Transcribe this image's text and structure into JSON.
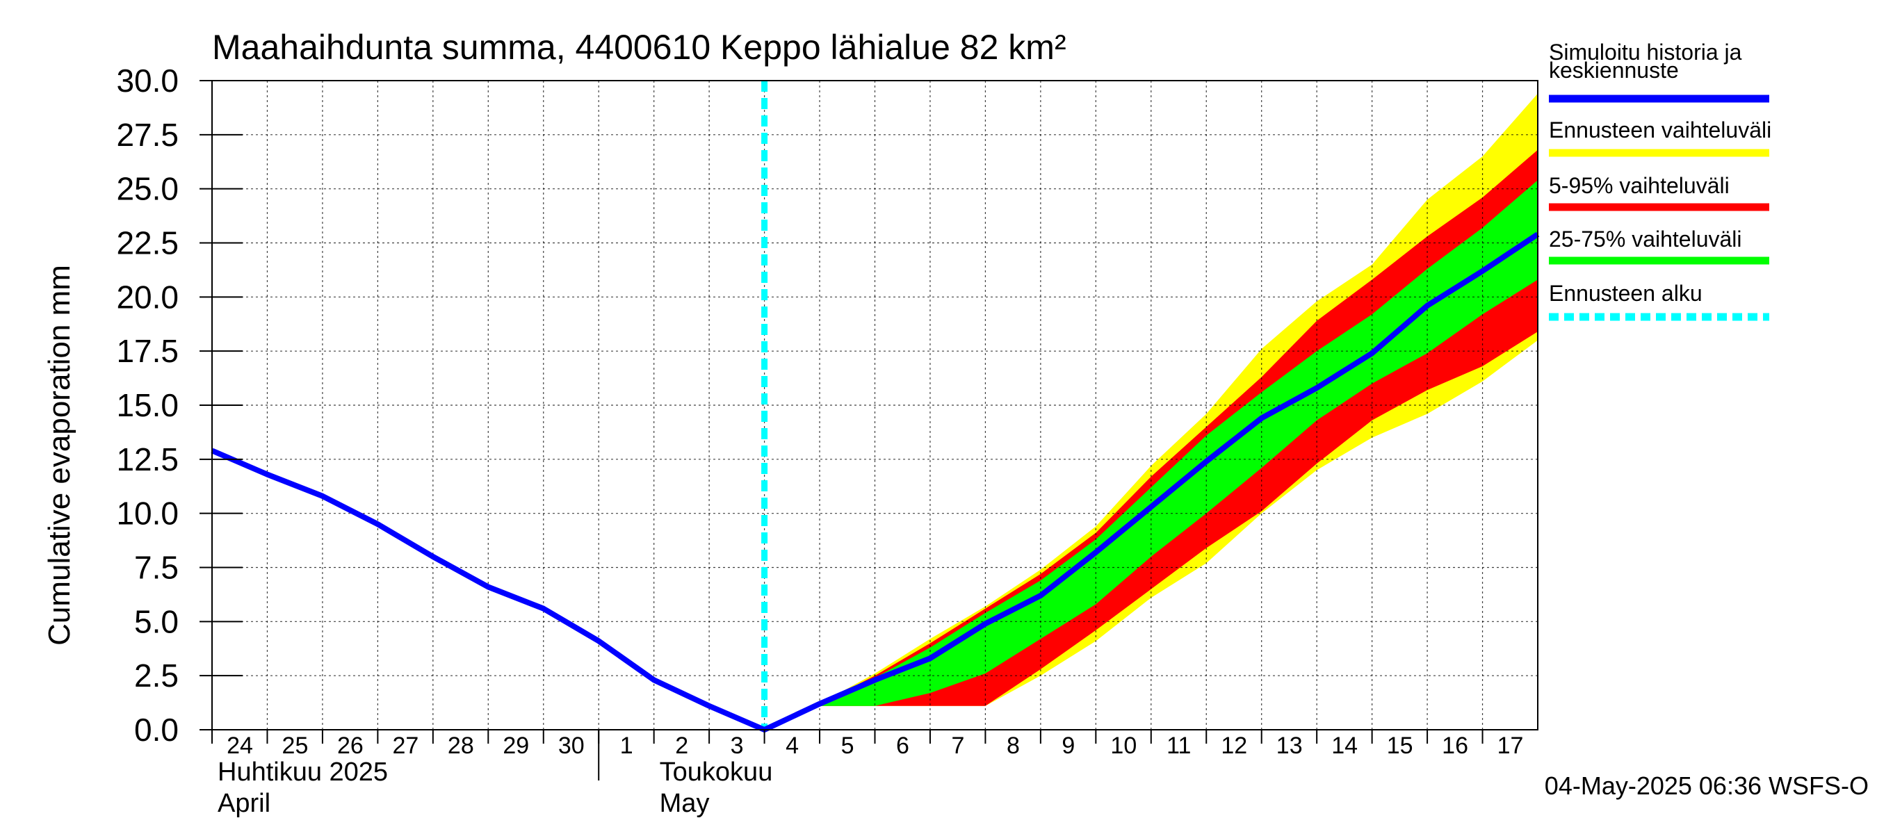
{
  "chart_data": {
    "type": "area",
    "title": "Maahaihdunta summa, 4400610 Keppo lähialue 82 km²",
    "ylabel": "Cumulative evaporation   mm",
    "ylim": [
      0,
      30
    ],
    "yticks": [
      "0.0",
      "2.5",
      "5.0",
      "7.5",
      "10.0",
      "12.5",
      "15.0",
      "17.5",
      "20.0",
      "22.5",
      "25.0",
      "27.5",
      "30.0"
    ],
    "x_range_days": [
      0,
      24
    ],
    "x_ticks": [
      {
        "day": 0,
        "label": "24"
      },
      {
        "day": 1,
        "label": "25"
      },
      {
        "day": 2,
        "label": "26"
      },
      {
        "day": 3,
        "label": "27"
      },
      {
        "day": 4,
        "label": "28"
      },
      {
        "day": 5,
        "label": "29"
      },
      {
        "day": 6,
        "label": "30"
      },
      {
        "day": 7,
        "label": "1"
      },
      {
        "day": 8,
        "label": "2"
      },
      {
        "day": 9,
        "label": "3"
      },
      {
        "day": 10,
        "label": "4"
      },
      {
        "day": 11,
        "label": "5"
      },
      {
        "day": 12,
        "label": "6"
      },
      {
        "day": 13,
        "label": "7"
      },
      {
        "day": 14,
        "label": "8"
      },
      {
        "day": 15,
        "label": "9"
      },
      {
        "day": 16,
        "label": "10"
      },
      {
        "day": 17,
        "label": "11"
      },
      {
        "day": 18,
        "label": "12"
      },
      {
        "day": 19,
        "label": "13"
      },
      {
        "day": 20,
        "label": "14"
      },
      {
        "day": 21,
        "label": "15"
      },
      {
        "day": 22,
        "label": "16"
      },
      {
        "day": 23,
        "label": "17"
      }
    ],
    "month_boundary_day": 7,
    "month_labels": [
      {
        "day": 0,
        "line1": "Huhtikuu  2025",
        "line2": "April"
      },
      {
        "day": 8,
        "line1": "Toukokuu",
        "line2": "May"
      }
    ],
    "forecast_start_day": 10,
    "history": {
      "x": [
        0,
        1,
        2,
        3,
        4,
        5,
        6,
        7,
        8,
        9,
        10
      ],
      "y": [
        12.9,
        11.8,
        10.8,
        9.5,
        8.0,
        6.6,
        5.6,
        4.1,
        2.3,
        1.1,
        0.0
      ]
    },
    "forecast_x": [
      10,
      11,
      12,
      13,
      14,
      15,
      16,
      17,
      18,
      19,
      20,
      21,
      22,
      23,
      24
    ],
    "median": [
      0.0,
      1.2,
      2.3,
      3.3,
      4.9,
      6.2,
      8.2,
      10.3,
      12.4,
      14.4,
      15.8,
      17.4,
      19.6,
      21.2,
      22.9
    ],
    "range_full": {
      "low": [
        0.0,
        1.1,
        1.1,
        1.1,
        1.1,
        2.5,
        4.1,
        6.1,
        7.7,
        10.0,
        12.0,
        13.5,
        14.6,
        16.1,
        18.0
      ],
      "high": [
        0.0,
        1.2,
        2.6,
        4.2,
        5.7,
        7.4,
        9.4,
        12.2,
        14.6,
        17.6,
        19.8,
        21.5,
        24.5,
        26.5,
        29.4
      ]
    },
    "range_5_95": {
      "low": [
        0.0,
        1.1,
        1.1,
        1.1,
        1.1,
        2.8,
        4.6,
        6.5,
        8.4,
        10.1,
        12.3,
        14.3,
        15.7,
        16.8,
        18.4
      ],
      "high": [
        0.0,
        1.2,
        2.5,
        4.0,
        5.6,
        7.2,
        9.1,
        11.7,
        14.0,
        16.3,
        18.9,
        20.8,
        22.8,
        24.6,
        26.8
      ]
    },
    "range_25_75": {
      "low": [
        0.0,
        1.1,
        1.1,
        1.7,
        2.6,
        4.2,
        5.8,
        8.0,
        10.0,
        12.1,
        14.3,
        16.0,
        17.4,
        19.2,
        20.8
      ],
      "high": [
        0.0,
        1.2,
        2.4,
        3.8,
        5.4,
        6.9,
        8.8,
        11.2,
        13.6,
        15.6,
        17.5,
        19.2,
        21.3,
        23.2,
        25.4
      ]
    },
    "legend": [
      {
        "label": "Simuloitu historia ja",
        "label2": "keskiennuste",
        "color": "#0000ff",
        "style": "solid"
      },
      {
        "label": "Ennusteen vaihteluväli",
        "color": "#ffff00",
        "style": "solid"
      },
      {
        "label": "5-95% vaihteluväli",
        "color": "#ff0000",
        "style": "solid"
      },
      {
        "label": "25-75% vaihteluväli",
        "color": "#00ff00",
        "style": "solid"
      },
      {
        "label": "Ennusteen alku",
        "color": "#00ffff",
        "style": "dashed"
      }
    ],
    "footer": "04-May-2025 06:36 WSFS-O"
  }
}
